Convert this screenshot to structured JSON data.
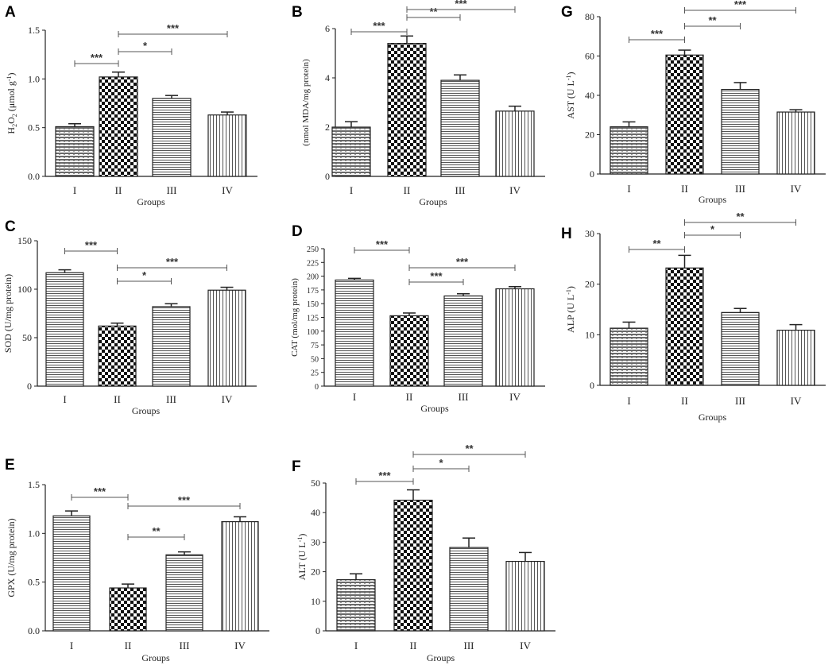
{
  "figure_title": "",
  "chart_data": [
    {
      "panel": "A",
      "type": "bar",
      "ylabel": "H2O2 (μmol g-1)",
      "ylabel_main": "H",
      "ylabel_sub": "2",
      "ylabel_mid": "O",
      "ylabel_sub2": "2",
      "ylabel_rest": " (μmol g",
      "ylabel_sup": "-1",
      "ylabel_end": ")",
      "xlabel": "Groups",
      "categories": [
        "I",
        "II",
        "III",
        "IV"
      ],
      "values": [
        0.51,
        1.02,
        0.8,
        0.63
      ],
      "errors": [
        0.03,
        0.05,
        0.03,
        0.03
      ],
      "ylim": [
        0,
        1.5
      ],
      "yticks": [
        "0.0",
        "0.5",
        "1.0",
        "1.5"
      ],
      "patterns": [
        "p1",
        "p2",
        "p3",
        "p4"
      ],
      "significance": [
        {
          "from": 0,
          "to": 1,
          "label": "***"
        },
        {
          "from": 1,
          "to": 2,
          "label": "*"
        },
        {
          "from": 1,
          "to": 3,
          "label": "***"
        }
      ]
    },
    {
      "panel": "B",
      "type": "bar",
      "ylabel": "(nmol MDA/mg protein)",
      "xlabel": "Groups",
      "categories": [
        "I",
        "II",
        "III",
        "IV"
      ],
      "values": [
        2.0,
        5.4,
        3.9,
        2.65
      ],
      "errors": [
        0.22,
        0.3,
        0.22,
        0.2
      ],
      "ylim": [
        0,
        6
      ],
      "yticks": [
        "0",
        "2",
        "4",
        "6"
      ],
      "patterns": [
        "p1",
        "p2",
        "p3",
        "p4"
      ],
      "significance": [
        {
          "from": 0,
          "to": 1,
          "label": "***"
        },
        {
          "from": 1,
          "to": 2,
          "label": "**"
        },
        {
          "from": 1,
          "to": 3,
          "label": "***"
        }
      ]
    },
    {
      "panel": "C",
      "type": "bar",
      "ylabel": "SOD (U/mg protein)",
      "xlabel": "Groups",
      "categories": [
        "I",
        "II",
        "III",
        "IV"
      ],
      "values": [
        117,
        62,
        82,
        99
      ],
      "errors": [
        3,
        3,
        3,
        3
      ],
      "ylim": [
        0,
        150
      ],
      "yticks": [
        "0",
        "50",
        "100",
        "150"
      ],
      "patterns": [
        "p3",
        "p2",
        "p3",
        "p4"
      ],
      "significance": [
        {
          "from": 0,
          "to": 1,
          "label": "***"
        },
        {
          "from": 1,
          "to": 3,
          "label": "***"
        },
        {
          "from": 1,
          "to": 2,
          "label": "*"
        }
      ]
    },
    {
      "panel": "D",
      "type": "bar",
      "ylabel": "CAT (mol/mg protein)",
      "xlabel": "Groups",
      "categories": [
        "I",
        "II",
        "III",
        "IV"
      ],
      "values": [
        193,
        128,
        164,
        177
      ],
      "errors": [
        3,
        5,
        4,
        4
      ],
      "ylim": [
        0,
        250
      ],
      "yticks": [
        "0",
        "25",
        "50",
        "75",
        "100",
        "125",
        "150",
        "175",
        "200",
        "225",
        "250"
      ],
      "patterns": [
        "p3",
        "p2",
        "p3",
        "p4"
      ],
      "significance": [
        {
          "from": 0,
          "to": 1,
          "label": "***"
        },
        {
          "from": 1,
          "to": 3,
          "label": "***"
        },
        {
          "from": 1,
          "to": 2,
          "label": "***"
        }
      ]
    },
    {
      "panel": "E",
      "type": "bar",
      "ylabel": "GPX (U/mg protein)",
      "xlabel": "Groups",
      "categories": [
        "I",
        "II",
        "III",
        "IV"
      ],
      "values": [
        1.18,
        0.44,
        0.78,
        1.12
      ],
      "errors": [
        0.05,
        0.04,
        0.03,
        0.05
      ],
      "ylim": [
        0,
        1.5
      ],
      "yticks": [
        "0.0",
        "0.5",
        "1.0",
        "1.5"
      ],
      "patterns": [
        "p3",
        "p2",
        "p3",
        "p4"
      ],
      "significance": [
        {
          "from": 0,
          "to": 1,
          "label": "***"
        },
        {
          "from": 1,
          "to": 3,
          "label": "***"
        },
        {
          "from": 1,
          "to": 2,
          "label": "**"
        }
      ]
    },
    {
      "panel": "F",
      "type": "bar",
      "ylabel": "ALT (U L-1)",
      "ylabel_main": "ALT (U L",
      "ylabel_sup": "-1",
      "ylabel_end": ")",
      "xlabel": "Groups",
      "categories": [
        "I",
        "II",
        "III",
        "IV"
      ],
      "values": [
        17.3,
        44.2,
        28.2,
        23.5
      ],
      "errors": [
        2.0,
        3.5,
        3.2,
        3.0
      ],
      "ylim": [
        0,
        50
      ],
      "yticks": [
        "0",
        "10",
        "20",
        "30",
        "40",
        "50"
      ],
      "patterns": [
        "p1",
        "p2",
        "p3",
        "p4"
      ],
      "significance": [
        {
          "from": 0,
          "to": 1,
          "label": "***"
        },
        {
          "from": 1,
          "to": 2,
          "label": "*"
        },
        {
          "from": 1,
          "to": 3,
          "label": "**"
        }
      ]
    },
    {
      "panel": "G",
      "type": "bar",
      "ylabel": "AST (U L-1)",
      "ylabel_main": "AST (U L",
      "ylabel_sup": "-1",
      "ylabel_end": ")",
      "xlabel": "Groups",
      "categories": [
        "I",
        "II",
        "III",
        "IV"
      ],
      "values": [
        24,
        60.5,
        43,
        31.5
      ],
      "errors": [
        2.5,
        2.5,
        3.5,
        1.2
      ],
      "ylim": [
        0,
        80
      ],
      "yticks": [
        "0",
        "20",
        "40",
        "60",
        "80"
      ],
      "patterns": [
        "p1",
        "p2",
        "p3",
        "p4"
      ],
      "significance": [
        {
          "from": 0,
          "to": 1,
          "label": "***"
        },
        {
          "from": 1,
          "to": 2,
          "label": "**"
        },
        {
          "from": 1,
          "to": 3,
          "label": "***"
        }
      ]
    },
    {
      "panel": "H",
      "type": "bar",
      "ylabel": "ALP (U L-1)",
      "ylabel_main": "ALP (U L",
      "ylabel_sup": "-1",
      "ylabel_end": ")",
      "xlabel": "Groups",
      "categories": [
        "I",
        "II",
        "III",
        "IV"
      ],
      "values": [
        11.3,
        23.2,
        14.4,
        10.9
      ],
      "errors": [
        1.2,
        2.5,
        0.8,
        1.1
      ],
      "ylim": [
        0,
        30
      ],
      "yticks": [
        "0",
        "10",
        "20",
        "30"
      ],
      "patterns": [
        "p1",
        "p2",
        "p3",
        "p4"
      ],
      "significance": [
        {
          "from": 0,
          "to": 1,
          "label": "**"
        },
        {
          "from": 1,
          "to": 2,
          "label": "*"
        },
        {
          "from": 1,
          "to": 3,
          "label": "**"
        }
      ]
    }
  ]
}
